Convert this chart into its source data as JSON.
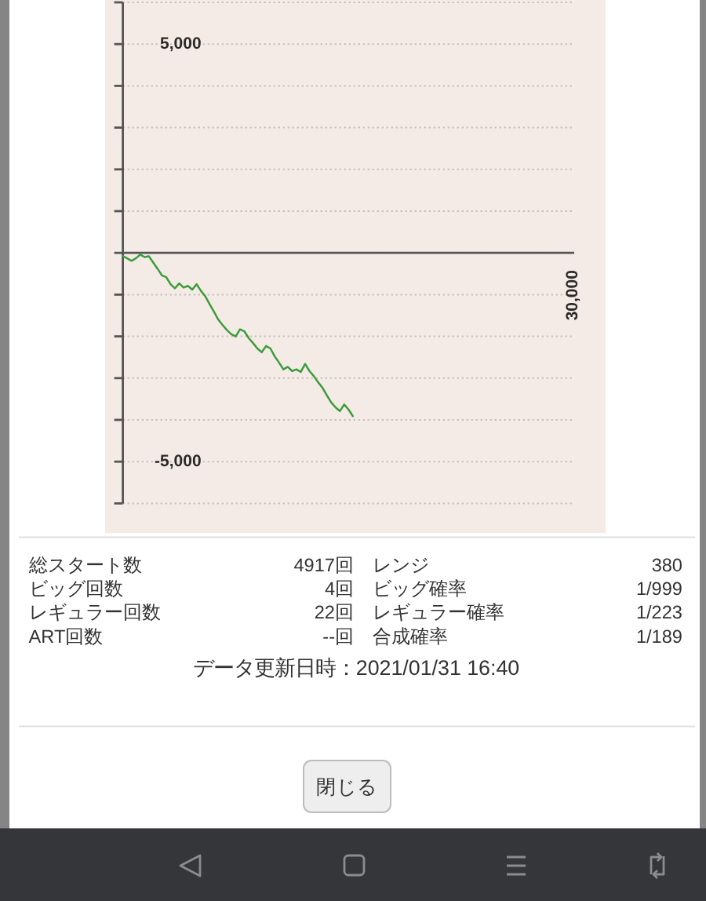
{
  "chart_data": [
    {
      "type": "line",
      "categories": [
        null,
        null,
        null,
        null,
        null,
        null,
        null,
        null,
        null,
        null,
        null,
        null,
        null,
        null,
        null,
        null,
        null,
        null,
        null,
        null,
        null,
        null,
        null,
        null,
        null,
        null,
        null,
        null,
        null,
        null,
        null,
        null,
        null,
        null,
        null,
        null,
        null,
        null,
        null,
        null,
        null,
        null,
        null,
        null,
        null,
        null,
        null,
        null,
        null,
        null,
        null,
        null,
        null,
        null,
        null,
        null,
        null,
        null,
        null,
        null,
        null,
        null,
        null,
        null,
        null,
        null,
        null,
        null,
        null,
        null,
        null,
        null,
        null,
        null,
        null,
        null,
        null,
        null,
        null,
        null,
        null,
        null,
        null,
        null,
        null,
        null,
        null,
        null,
        null,
        null,
        null,
        null,
        null,
        null,
        null,
        null,
        null,
        null,
        null,
        null,
        null,
        null,
        null,
        null,
        null
      ],
      "values": [
        -80,
        -130,
        -190,
        -130,
        -40,
        -100,
        -80,
        -230,
        -380,
        -540,
        -580,
        -750,
        -850,
        -730,
        -830,
        -790,
        -880,
        -750,
        -910,
        -1040,
        -1230,
        -1410,
        -1600,
        -1730,
        -1850,
        -1950,
        -2000,
        -1830,
        -1880,
        -2040,
        -2160,
        -2290,
        -2380,
        -2230,
        -2290,
        -2480,
        -2630,
        -2790,
        -2730,
        -2830,
        -2790,
        -2850,
        -2660,
        -2830,
        -2950,
        -3100,
        -3230,
        -3410,
        -3580,
        -3700,
        -3790,
        -3630,
        -3750,
        -3910,
        null,
        null,
        null,
        null,
        null,
        null,
        null,
        null,
        null,
        null,
        null,
        null,
        null,
        null,
        null,
        null,
        null,
        null,
        null,
        null,
        null,
        null,
        null,
        null,
        null,
        null,
        null,
        null,
        null,
        null,
        null,
        null,
        null,
        null,
        null,
        null,
        null,
        null,
        null,
        null,
        null,
        null,
        null,
        null,
        null,
        null,
        null,
        null,
        null,
        null,
        null
      ],
      "color": "#3c9c3c",
      "ylim": [
        -6000,
        6000
      ],
      "yticks": [
        {
          "value": -6000,
          "label": null
        },
        {
          "value": -5000,
          "label": "-5,000"
        },
        {
          "value": -4000,
          "label": null
        },
        {
          "value": -3000,
          "label": null
        },
        {
          "value": -2000,
          "label": null
        },
        {
          "value": -1000,
          "label": null
        },
        {
          "value": 0,
          "label": null
        },
        {
          "value": 1000,
          "label": null
        },
        {
          "value": 2000,
          "label": null
        },
        {
          "value": 3000,
          "label": null
        },
        {
          "value": 4000,
          "label": null
        },
        {
          "value": 5000,
          "label": "5,000"
        },
        {
          "value": 6000,
          "label": null
        }
      ],
      "grid": "y",
      "annotations": [
        "30,000"
      ]
    },
    {
      "type": "other",
      "annotations": [
        "総スタート数",
        "4917回",
        "レンジ",
        "380",
        "ビッグ回数",
        "4回",
        "ビッグ確率",
        "1/999",
        "レギュラー回数",
        "22回",
        "レギュラー確率",
        "1/223",
        "ART回数",
        "--回",
        "合成確率",
        "1/189",
        "データ更新日時：2021/01/31 16:40",
        "閉じる"
      ]
    }
  ]
}
